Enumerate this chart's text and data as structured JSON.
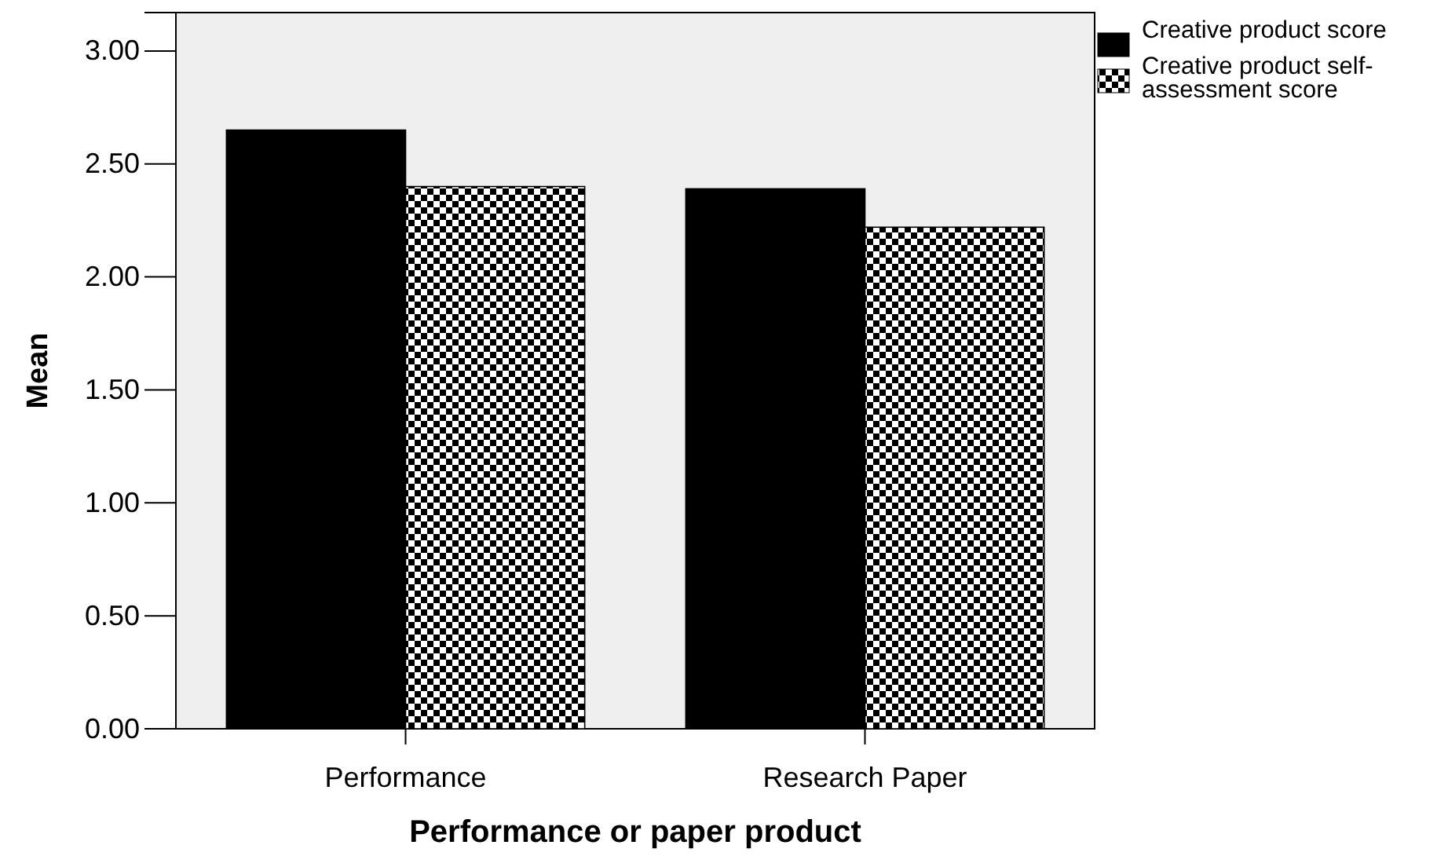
{
  "chart_data": {
    "type": "bar",
    "xlabel": "Performance or paper product",
    "ylabel": "Mean",
    "categories": [
      "Performance",
      "Research Paper"
    ],
    "series": [
      {
        "name": "Creative product score",
        "color": "#000000",
        "values": [
          2.65,
          2.39
        ]
      },
      {
        "name": "Creative product self-assessment score",
        "color": "#000000",
        "values": [
          2.4,
          2.22
        ]
      }
    ],
    "ylim": [
      0,
      3.17
    ],
    "yticks": [
      {
        "value": 0,
        "label": "0.00"
      },
      {
        "value": 0.5,
        "label": "0.50"
      },
      {
        "value": 1,
        "label": "1.00"
      },
      {
        "value": 1.5,
        "label": "1.50"
      },
      {
        "value": 2,
        "label": "2.00"
      },
      {
        "value": 2.5,
        "label": "2.50"
      },
      {
        "value": 3,
        "label": "3.00"
      }
    ],
    "grid": false,
    "legend": "top right"
  }
}
